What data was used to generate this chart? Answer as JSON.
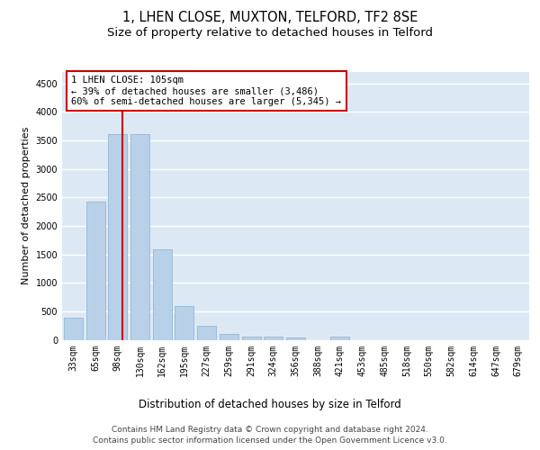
{
  "title": "1, LHEN CLOSE, MUXTON, TELFORD, TF2 8SE",
  "subtitle": "Size of property relative to detached houses in Telford",
  "xlabel": "Distribution of detached houses by size in Telford",
  "ylabel": "Number of detached properties",
  "categories": [
    "33sqm",
    "65sqm",
    "98sqm",
    "130sqm",
    "162sqm",
    "195sqm",
    "227sqm",
    "259sqm",
    "291sqm",
    "324sqm",
    "356sqm",
    "388sqm",
    "421sqm",
    "453sqm",
    "485sqm",
    "518sqm",
    "550sqm",
    "582sqm",
    "614sqm",
    "647sqm",
    "679sqm"
  ],
  "values": [
    380,
    2420,
    3610,
    3610,
    1580,
    600,
    240,
    100,
    60,
    50,
    40,
    0,
    50,
    0,
    0,
    0,
    0,
    0,
    0,
    0,
    0
  ],
  "bar_color": "#b8d0e8",
  "bar_edge_color": "#8ab0d0",
  "vline_color": "#cc0000",
  "annotation_text": "1 LHEN CLOSE: 105sqm\n← 39% of detached houses are smaller (3,486)\n60% of semi-detached houses are larger (5,345) →",
  "annotation_box_color": "#ffffff",
  "annotation_box_edge": "#cc0000",
  "ylim": [
    0,
    4700
  ],
  "yticks": [
    0,
    500,
    1000,
    1500,
    2000,
    2500,
    3000,
    3500,
    4000,
    4500
  ],
  "background_color": "#dce9f5",
  "grid_color": "#ffffff",
  "footer_text": "Contains HM Land Registry data © Crown copyright and database right 2024.\nContains public sector information licensed under the Open Government Licence v3.0.",
  "title_fontsize": 10.5,
  "subtitle_fontsize": 9.5,
  "xlabel_fontsize": 8.5,
  "ylabel_fontsize": 8,
  "tick_fontsize": 7,
  "annotation_fontsize": 7.5,
  "footer_fontsize": 6.5
}
